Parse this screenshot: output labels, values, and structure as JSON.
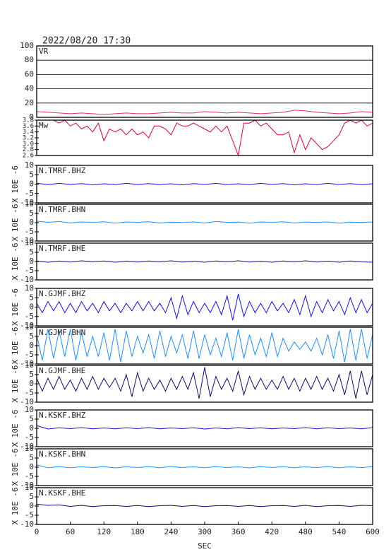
{
  "chart_data": [
    {
      "type": "line",
      "title": "2022/08/20 17:30",
      "xlim": [
        0,
        600
      ],
      "ylim": [
        0,
        100
      ],
      "yticks": [
        0,
        20,
        40,
        60,
        80,
        100
      ],
      "grid": true,
      "x": [
        0,
        20,
        40,
        60,
        80,
        100,
        120,
        140,
        160,
        180,
        200,
        220,
        240,
        260,
        280,
        300,
        320,
        340,
        360,
        380,
        400,
        420,
        440,
        460,
        480,
        500,
        520,
        540,
        560,
        580,
        600
      ],
      "series": [
        {
          "name": "VR",
          "color": "#e8305f",
          "values": [
            8,
            7,
            6,
            5,
            6,
            5,
            4,
            5,
            6,
            5,
            5,
            6,
            7,
            6,
            6,
            8,
            7,
            6,
            7,
            6,
            5,
            6,
            7,
            10,
            9,
            7,
            6,
            5,
            6,
            8,
            7
          ]
        }
      ]
    },
    {
      "type": "line",
      "xlim": [
        0,
        600
      ],
      "ylim": [
        2.6,
        3.8
      ],
      "yticks": [
        2.6,
        2.8,
        {
          "value": 3,
          "label": "3.0"
        },
        3.2,
        3.4,
        3.6,
        3.8
      ],
      "grid": false,
      "x": [
        0,
        10,
        20,
        30,
        40,
        50,
        60,
        70,
        80,
        90,
        100,
        110,
        120,
        130,
        140,
        150,
        160,
        170,
        180,
        190,
        200,
        210,
        220,
        230,
        240,
        250,
        260,
        270,
        280,
        290,
        300,
        310,
        320,
        330,
        340,
        350,
        360,
        370,
        380,
        390,
        400,
        410,
        420,
        430,
        440,
        450,
        460,
        470,
        480,
        490,
        500,
        510,
        520,
        530,
        540,
        550,
        560,
        570,
        580,
        590,
        600
      ],
      "series": [
        {
          "name": "Mw",
          "color": "#e0003c",
          "values": [
            3.8,
            3.8,
            3.8,
            3.8,
            3.7,
            3.8,
            3.6,
            3.7,
            3.5,
            3.6,
            3.4,
            3.7,
            3.1,
            3.5,
            3.4,
            3.5,
            3.3,
            3.5,
            3.3,
            3.4,
            3.2,
            3.6,
            3.6,
            3.5,
            3.3,
            3.7,
            3.6,
            3.6,
            3.7,
            3.6,
            3.5,
            3.4,
            3.6,
            3.4,
            3.6,
            3.1,
            2.6,
            3.7,
            3.7,
            3.8,
            3.6,
            3.7,
            3.5,
            3.3,
            3.3,
            3.4,
            2.7,
            3.3,
            2.8,
            3.2,
            3.0,
            2.8,
            2.9,
            3.1,
            3.3,
            3.7,
            3.8,
            3.7,
            3.8,
            3.6,
            3.7
          ]
        }
      ]
    },
    {
      "type": "line",
      "ylabel": "X 10E -6",
      "xlim": [
        0,
        600
      ],
      "ylim": [
        -10,
        10
      ],
      "yticks": [
        -10,
        -5,
        0,
        5,
        10
      ],
      "grid": false,
      "x": [
        0,
        20,
        40,
        60,
        80,
        100,
        120,
        140,
        160,
        180,
        200,
        220,
        240,
        260,
        280,
        300,
        320,
        340,
        360,
        380,
        400,
        420,
        440,
        460,
        480,
        500,
        520,
        540,
        560,
        580,
        600
      ],
      "series": [
        {
          "name": "N.TMRF.BHZ",
          "color": "#1414d8",
          "values": [
            0.5,
            -0.3,
            0.4,
            -0.2,
            0.3,
            -0.4,
            0.2,
            -0.3,
            0.4,
            -0.2,
            0.3,
            -0.3,
            0.2,
            -0.4,
            0.3,
            -0.2,
            0.4,
            -0.3,
            0.2,
            -0.3,
            0.4,
            -0.2,
            0.3,
            -0.4,
            0.2,
            -0.3,
            0.4,
            -0.2,
            0.3,
            -0.3,
            0.2
          ]
        }
      ]
    },
    {
      "type": "line",
      "ylabel": "X 10E -6",
      "xlim": [
        0,
        600
      ],
      "ylim": [
        -10,
        10
      ],
      "yticks": [
        -10,
        -5,
        0,
        5,
        10
      ],
      "grid": false,
      "x": [
        0,
        20,
        40,
        60,
        80,
        100,
        120,
        140,
        160,
        180,
        200,
        220,
        240,
        260,
        280,
        300,
        320,
        340,
        360,
        380,
        400,
        420,
        440,
        460,
        480,
        500,
        520,
        540,
        560,
        580,
        600
      ],
      "series": [
        {
          "name": "N.TMRF.BHN",
          "color": "#1e90ff",
          "values": [
            0.8,
            0.2,
            0.6,
            -0.2,
            0.4,
            0.1,
            0.5,
            -0.3,
            0.4,
            0.2,
            0.5,
            -0.2,
            0.3,
            0.1,
            0.4,
            -0.2,
            0.6,
            0.2,
            0.3,
            -0.3,
            0.4,
            0.1,
            0.5,
            -0.2,
            0.3,
            0.2,
            0.4,
            -0.3,
            0.3,
            0.1,
            0.4
          ]
        }
      ]
    },
    {
      "type": "line",
      "ylabel": "X 10E -6",
      "xlim": [
        0,
        600
      ],
      "ylim": [
        -10,
        10
      ],
      "yticks": [
        -10,
        -5,
        0,
        5,
        10
      ],
      "grid": false,
      "x": [
        0,
        20,
        40,
        60,
        80,
        100,
        120,
        140,
        160,
        180,
        200,
        220,
        240,
        260,
        280,
        300,
        320,
        340,
        360,
        380,
        400,
        420,
        440,
        460,
        480,
        500,
        520,
        540,
        560,
        580,
        600
      ],
      "series": [
        {
          "name": "N.TMRF.BHE",
          "color": "#0a0a78",
          "values": [
            0.3,
            -0.4,
            0.2,
            -0.3,
            0.4,
            -0.2,
            0.3,
            -0.4,
            0.2,
            -0.3,
            0.3,
            -0.2,
            0.4,
            -0.3,
            0.2,
            -0.4,
            0.3,
            -0.2,
            0.4,
            -0.3,
            0.2,
            -0.4,
            0.3,
            -0.2,
            0.4,
            -0.3,
            0.2,
            -0.4,
            0.3,
            -0.2,
            -0.4
          ]
        }
      ]
    },
    {
      "type": "line",
      "ylabel": "X 10E -6",
      "xlim": [
        0,
        600
      ],
      "ylim": [
        -10,
        10
      ],
      "yticks": [
        -10,
        -5,
        0,
        5,
        10
      ],
      "grid": false,
      "x": [
        0,
        10,
        20,
        30,
        40,
        50,
        60,
        70,
        80,
        90,
        100,
        110,
        120,
        130,
        140,
        150,
        160,
        170,
        180,
        190,
        200,
        210,
        220,
        230,
        240,
        250,
        260,
        270,
        280,
        290,
        300,
        310,
        320,
        330,
        340,
        350,
        360,
        370,
        380,
        390,
        400,
        410,
        420,
        430,
        440,
        450,
        460,
        470,
        480,
        490,
        500,
        510,
        520,
        530,
        540,
        550,
        560,
        570,
        580,
        590,
        600
      ],
      "series": [
        {
          "name": "N.GJMF.BHZ",
          "color": "#1414e8",
          "values": [
            2,
            -3,
            3,
            -2,
            3,
            -3,
            2,
            -3,
            3,
            -2,
            2,
            -3,
            3,
            -2,
            2,
            -3,
            2,
            -2,
            3,
            -2,
            3,
            -2,
            2,
            -3,
            5,
            -6,
            6,
            -4,
            3,
            -3,
            2,
            -3,
            3,
            -4,
            6,
            -7,
            7,
            -5,
            3,
            -3,
            2,
            -3,
            3,
            -2,
            2,
            -3,
            4,
            -4,
            6,
            -5,
            3,
            -3,
            4,
            -2,
            3,
            -4,
            5,
            -3,
            4,
            -3,
            2
          ]
        }
      ]
    },
    {
      "type": "line",
      "ylabel": "X 10E -6",
      "xlim": [
        0,
        600
      ],
      "ylim": [
        -10,
        10
      ],
      "yticks": [
        -10,
        -5,
        0,
        5,
        10
      ],
      "grid": false,
      "x": [
        0,
        10,
        20,
        30,
        40,
        50,
        60,
        70,
        80,
        90,
        100,
        110,
        120,
        130,
        140,
        150,
        160,
        170,
        180,
        190,
        200,
        210,
        220,
        230,
        240,
        250,
        260,
        270,
        280,
        290,
        300,
        310,
        320,
        330,
        340,
        350,
        360,
        370,
        380,
        390,
        400,
        410,
        420,
        430,
        440,
        450,
        460,
        470,
        480,
        490,
        500,
        510,
        520,
        530,
        540,
        550,
        560,
        570,
        580,
        590,
        600
      ],
      "series": [
        {
          "name": "N.GJMF.BHN",
          "color": "#1e90ff",
          "values": [
            6,
            -8,
            9,
            -7,
            8,
            -6,
            9,
            -8,
            7,
            -6,
            5,
            -6,
            7,
            -8,
            9,
            -9,
            8,
            -6,
            5,
            -4,
            6,
            -7,
            8,
            -6,
            5,
            -4,
            6,
            -7,
            8,
            -7,
            6,
            -5,
            4,
            -6,
            7,
            -8,
            9,
            -7,
            6,
            -5,
            4,
            -6,
            7,
            -6,
            4,
            -3,
            2,
            -2,
            2,
            -3,
            4,
            -5,
            6,
            -7,
            8,
            -9,
            9,
            -8,
            9,
            -7,
            6
          ]
        }
      ]
    },
    {
      "type": "line",
      "ylabel": "X 10E -6",
      "xlim": [
        0,
        600
      ],
      "ylim": [
        -10,
        10
      ],
      "yticks": [
        -10,
        -5,
        0,
        5,
        10
      ],
      "grid": false,
      "x": [
        0,
        10,
        20,
        30,
        40,
        50,
        60,
        70,
        80,
        90,
        100,
        110,
        120,
        130,
        140,
        150,
        160,
        170,
        180,
        190,
        200,
        210,
        220,
        230,
        240,
        250,
        260,
        270,
        280,
        290,
        300,
        310,
        320,
        330,
        340,
        350,
        360,
        370,
        380,
        390,
        400,
        410,
        420,
        430,
        440,
        450,
        460,
        470,
        480,
        490,
        500,
        510,
        520,
        530,
        540,
        550,
        560,
        570,
        580,
        590,
        600
      ],
      "series": [
        {
          "name": "N.GJMF.BHE",
          "color": "#0a0a78",
          "values": [
            3,
            -4,
            3,
            -3,
            4,
            -3,
            2,
            -4,
            3,
            -3,
            4,
            -3,
            3,
            -2,
            3,
            -4,
            5,
            -7,
            6,
            -4,
            3,
            -3,
            2,
            -4,
            3,
            -3,
            4,
            -3,
            6,
            -8,
            9,
            -7,
            4,
            -3,
            3,
            -4,
            7,
            -6,
            4,
            -3,
            3,
            -3,
            2,
            -3,
            4,
            -3,
            3,
            -4,
            3,
            -3,
            4,
            -3,
            3,
            -4,
            5,
            -6,
            7,
            -8,
            7,
            -6,
            5
          ]
        }
      ]
    },
    {
      "type": "line",
      "ylabel": "X 10E -6",
      "xlim": [
        0,
        600
      ],
      "ylim": [
        -10,
        10
      ],
      "yticks": [
        -10,
        -5,
        0,
        5,
        10
      ],
      "grid": false,
      "x": [
        0,
        20,
        40,
        60,
        80,
        100,
        120,
        140,
        160,
        180,
        200,
        220,
        240,
        260,
        280,
        300,
        320,
        340,
        360,
        380,
        400,
        420,
        440,
        460,
        480,
        500,
        520,
        540,
        560,
        580,
        600
      ],
      "series": [
        {
          "name": "N.KSKF.BHZ",
          "color": "#1414d8",
          "values": [
            1.5,
            -0.4,
            0.3,
            -0.2,
            0.4,
            -0.3,
            0.2,
            -0.3,
            0.3,
            -0.2,
            0.4,
            -0.3,
            0.2,
            -0.2,
            0.3,
            -0.4,
            0.2,
            -0.3,
            0.4,
            -0.2,
            0.3,
            -0.3,
            0.2,
            -0.2,
            0.4,
            -0.3,
            0.3,
            -0.2,
            0.2,
            -0.3,
            0.4
          ]
        }
      ]
    },
    {
      "type": "line",
      "ylabel": "X 10E -6",
      "xlim": [
        0,
        600
      ],
      "ylim": [
        -10,
        10
      ],
      "yticks": [
        -10,
        -5,
        0,
        5,
        10
      ],
      "grid": false,
      "x": [
        0,
        20,
        40,
        60,
        80,
        100,
        120,
        140,
        160,
        180,
        200,
        220,
        240,
        260,
        280,
        300,
        320,
        340,
        360,
        380,
        400,
        420,
        440,
        460,
        480,
        500,
        520,
        540,
        560,
        580,
        600
      ],
      "series": [
        {
          "name": "N.KSKF.BHN",
          "color": "#1e90ff",
          "values": [
            1.2,
            -0.3,
            0.3,
            -0.3,
            0.2,
            -0.2,
            0.3,
            -0.4,
            0.2,
            -0.2,
            0.3,
            -0.3,
            0.4,
            -0.2,
            0.2,
            -0.3,
            0.3,
            -0.2,
            0.2,
            -0.4,
            0.3,
            -0.2,
            0.3,
            -0.3,
            0.2,
            -0.2,
            0.3,
            -0.3,
            0.2,
            -0.2,
            0.3
          ]
        }
      ]
    },
    {
      "type": "line",
      "ylabel": "X 10E -6",
      "xlabel": "SEC",
      "xlim": [
        0,
        600
      ],
      "ylim": [
        -10,
        10
      ],
      "yticks": [
        -10,
        -5,
        0,
        5,
        10
      ],
      "xticks": [
        0,
        60,
        120,
        180,
        240,
        300,
        360,
        420,
        480,
        540,
        600
      ],
      "grid": false,
      "x": [
        0,
        20,
        40,
        60,
        80,
        100,
        120,
        140,
        160,
        180,
        200,
        220,
        240,
        260,
        280,
        300,
        320,
        340,
        360,
        380,
        400,
        420,
        440,
        460,
        480,
        500,
        520,
        540,
        560,
        580,
        600
      ],
      "series": [
        {
          "name": "N.KSKF.BHE",
          "color": "#0a0a78",
          "values": [
            1.0,
            0.4,
            0.6,
            -0.2,
            0.4,
            -0.3,
            0.2,
            0.3,
            -0.2,
            0.3,
            -0.3,
            0.2,
            0.4,
            -0.2,
            0.3,
            -0.3,
            0.2,
            0.3,
            -0.2,
            0.3,
            -0.3,
            0.2,
            0.3,
            -0.2,
            0.4,
            -0.3,
            0.2,
            0.3,
            -0.2,
            0.4,
            0.2
          ]
        }
      ]
    }
  ]
}
